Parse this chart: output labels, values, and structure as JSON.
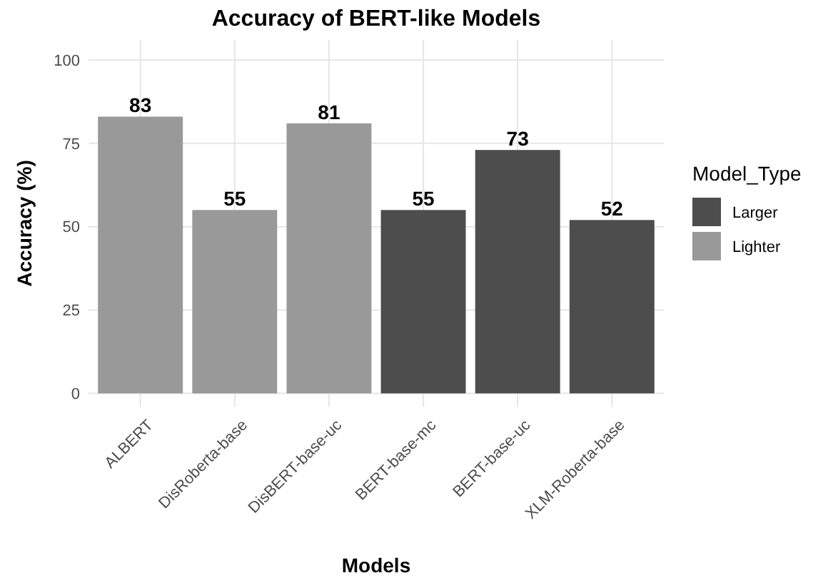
{
  "chart_data": {
    "type": "bar",
    "title": "Accuracy of BERT-like Models",
    "xlabel": "Models",
    "ylabel": "Accuracy (%)",
    "legend_title": "Model_Type",
    "categories": [
      "ALBERT",
      "DisRoberta-base",
      "DisBERT-base-uc",
      "BERT-base-mc",
      "BERT-base-uc",
      "XLM-Roberta-base"
    ],
    "series": [
      {
        "name": "Larger",
        "color": "#4d4d4d",
        "values": [
          null,
          null,
          null,
          55,
          73,
          52
        ]
      },
      {
        "name": "Lighter",
        "color": "#999999",
        "values": [
          83,
          55,
          81,
          null,
          null,
          null
        ]
      }
    ],
    "ylim": [
      -4,
      106
    ],
    "yticks": [
      0,
      25,
      50,
      75,
      100
    ],
    "grid": true,
    "legend": "right",
    "data_labels": true
  }
}
